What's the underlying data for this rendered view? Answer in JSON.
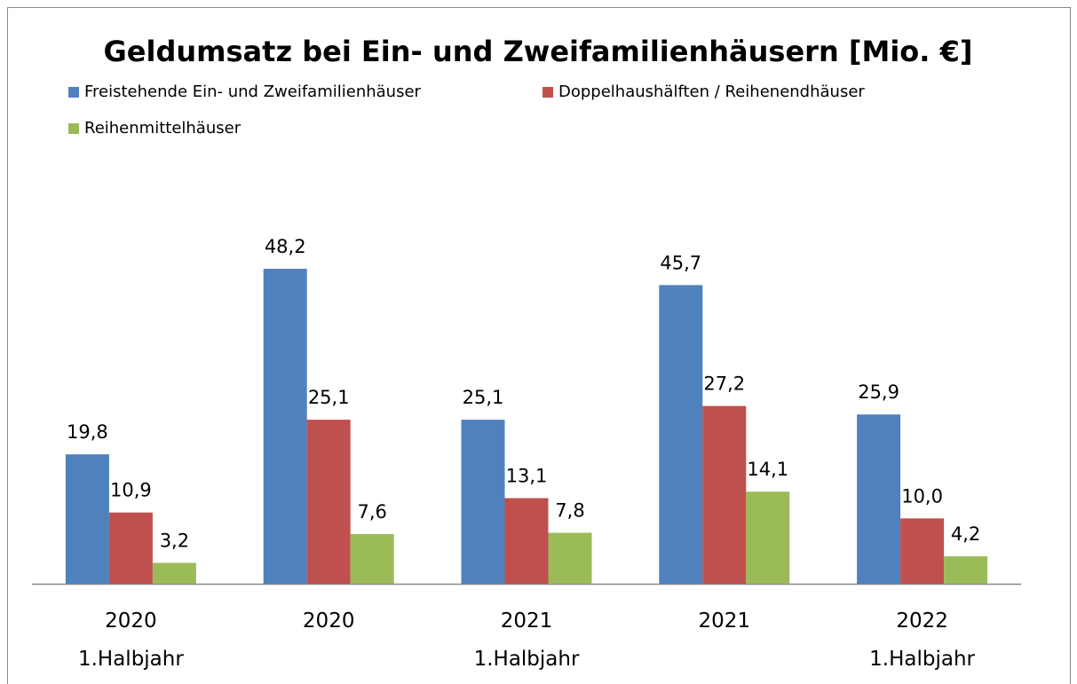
{
  "chart_data": {
    "type": "bar",
    "title": "Geldumsatz bei Ein- und Zweifamilienhäusern [Mio. €]",
    "categories": [
      "2020\n1.Halbjahr",
      "2020",
      "2021\n1.Halbjahr",
      "2021",
      "2022\n1.Halbjahr"
    ],
    "series": [
      {
        "name": "Freistehende Ein- und Zweifamilienhäuser",
        "color": "#4f81bd",
        "values": [
          19.8,
          48.2,
          25.1,
          45.7,
          25.9
        ],
        "value_labels": [
          "19,8",
          "48,2",
          "25,1",
          "45,7",
          "25,9"
        ]
      },
      {
        "name": "Doppelhaushälften / Reihenendhäuser",
        "color": "#c0504d",
        "values": [
          10.9,
          25.1,
          13.1,
          27.2,
          10.0
        ],
        "value_labels": [
          "10,9",
          "25,1",
          "13,1",
          "27,2",
          "10,0"
        ]
      },
      {
        "name": "Reihenmittelhäuser",
        "color": "#9bbb59",
        "values": [
          3.2,
          7.6,
          7.8,
          14.1,
          4.2
        ],
        "value_labels": [
          "3,2",
          "7,6",
          "7,8",
          "14,1",
          "4,2"
        ]
      }
    ],
    "ylim": [
      0,
      60
    ]
  }
}
